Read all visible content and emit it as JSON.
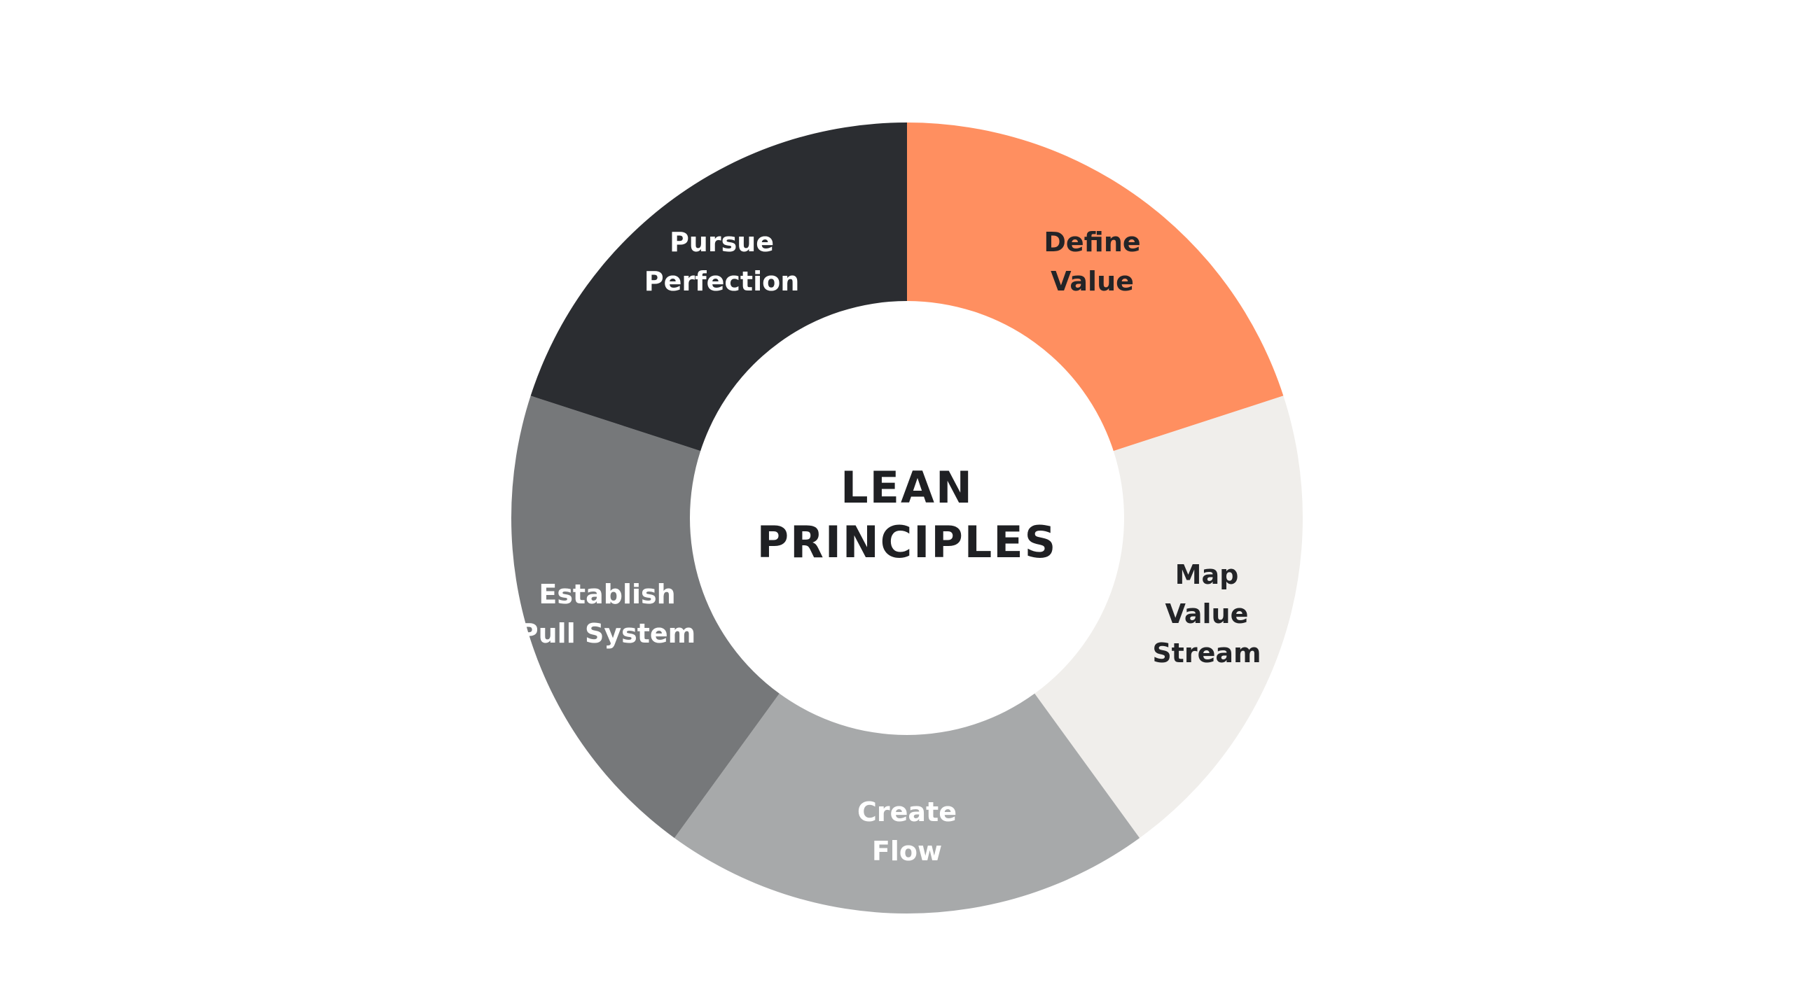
{
  "center": {
    "lines": [
      "LEAN",
      "PRINCIPLES"
    ],
    "color": "#1f2023"
  },
  "segments": [
    {
      "id": "define-value",
      "lines": [
        "Define",
        "Value"
      ],
      "fill": "#ff8f60",
      "text_color": "#232427"
    },
    {
      "id": "map-value-stream",
      "lines": [
        "Map",
        "Value",
        "Stream"
      ],
      "fill": "#f0eeeb",
      "text_color": "#232427"
    },
    {
      "id": "create-flow",
      "lines": [
        "Create",
        "Flow"
      ],
      "fill": "#a7a9aa",
      "text_color": "#ffffff"
    },
    {
      "id": "establish-pull-system",
      "lines": [
        "Establish",
        "Pull System"
      ],
      "fill": "#76787a",
      "text_color": "#ffffff"
    },
    {
      "id": "pursue-perfection",
      "lines": [
        "Pursue",
        "Perfection"
      ],
      "fill": "#2b2d31",
      "text_color": "#ffffff"
    }
  ]
}
